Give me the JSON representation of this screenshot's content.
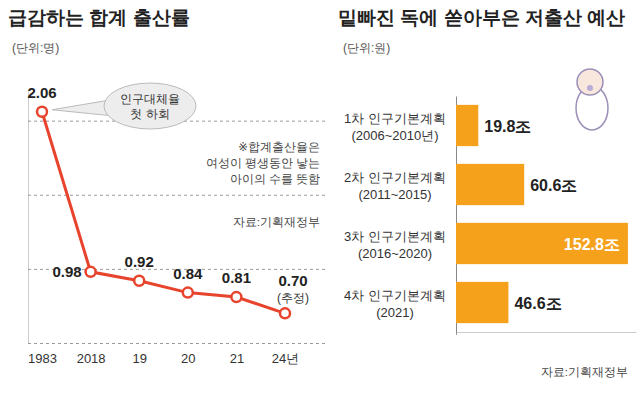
{
  "chart_data": [
    {
      "type": "line",
      "title": "급감하는 합계 출산률",
      "unit": "(단위:명)",
      "categories": [
        "1983",
        "2018",
        "19",
        "20",
        "21",
        "24년"
      ],
      "values": [
        2.06,
        0.98,
        0.92,
        0.84,
        0.81,
        0.7
      ],
      "value_labels": [
        "2.06",
        "0.98",
        "0.92",
        "0.84",
        "0.81",
        "0.70"
      ],
      "data_labels": true,
      "color": "#e8432d",
      "marker": "circle",
      "ylim": [
        0.5,
        2.2
      ],
      "yticks": [
        0.5,
        1,
        1.5,
        2
      ],
      "grid": true,
      "tick_labels": "x",
      "annotations": [
        "인구대체율\n첫 하회",
        "(추정)"
      ],
      "note": "※합계출산율은\n여성이 평생동안 낳는\n아이의 수를 뜻함",
      "source": "자료:기획재정부"
    },
    {
      "type": "bar",
      "orientation": "horizontal",
      "title": "밑빠진 독에 쏟아부은 저출산 예산",
      "unit": "(단위:원)",
      "categories": [
        "1차 인구기본계획\n(2006~2010년)",
        "2차 인구기본계획\n(2011~2015)",
        "3차 인구기본계획\n(2016~2020)",
        "4차 인구기본계획\n(2021)"
      ],
      "values": [
        19.8,
        60.6,
        152.8,
        46.6
      ],
      "value_labels": [
        "19.8조",
        "60.6조",
        "152.8조",
        "46.6조"
      ],
      "data_labels": true,
      "color": "#f5a11c",
      "xlim": [
        0,
        160
      ],
      "xticks": [
        0
      ],
      "tick_labels": "y",
      "source": "자료:기획재정부"
    }
  ]
}
